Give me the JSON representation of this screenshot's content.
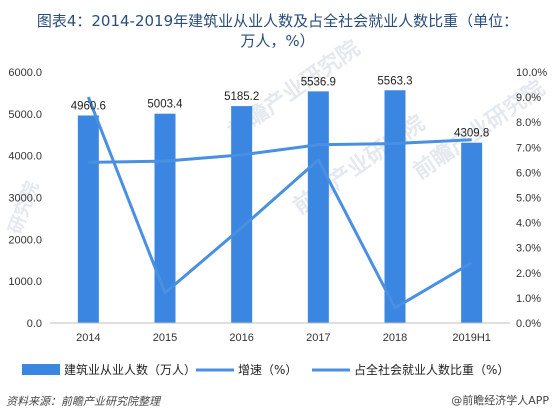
{
  "header": {
    "title_line1": "图表4：2014-2019年建筑业从业人数及占全社会就业人数比重（单位：",
    "title_line2": "万人，%）"
  },
  "footer": {
    "source": "资料来源：前瞻产业研究院整理",
    "brand": "@前瞻经济学人APP"
  },
  "watermarks": [
    "前瞻产业研究院",
    "前瞻产业研究院",
    "前瞻产业研究院",
    "研究院"
  ],
  "colors": {
    "bar": "#3b86e0",
    "line_growth": "#4a90e2",
    "line_share": "#4a90e2"
  },
  "chart_data": {
    "type": "bar",
    "categories": [
      "2014",
      "2015",
      "2016",
      "2017",
      "2018",
      "2019H1"
    ],
    "series": [
      {
        "name": "建筑业从业人数（万人）",
        "type": "bar",
        "axis": "left",
        "values": [
          4960.6,
          5003.4,
          5185.2,
          5536.9,
          5563.3,
          4309.8
        ]
      },
      {
        "name": "增速（%）",
        "type": "line",
        "axis": "right",
        "values": [
          9.0,
          1.2,
          3.8,
          6.5,
          0.6,
          2.4
        ]
      },
      {
        "name": "占全社会就业人数比重（%）",
        "type": "line",
        "axis": "right",
        "values": [
          6.4,
          6.45,
          6.7,
          7.1,
          7.15,
          7.3
        ]
      }
    ],
    "left_axis": {
      "ticks": [
        "0.0",
        "1000.0",
        "2000.0",
        "3000.0",
        "4000.0",
        "5000.0",
        "6000.0"
      ],
      "range": [
        0,
        6000
      ]
    },
    "right_axis": {
      "ticks": [
        "0.0%",
        "1.0%",
        "2.0%",
        "3.0%",
        "4.0%",
        "5.0%",
        "6.0%",
        "7.0%",
        "8.0%",
        "9.0%",
        "10.0%"
      ],
      "range": [
        0,
        10
      ]
    },
    "data_labels": [
      "4960.6",
      "5003.4",
      "5185.2",
      "5536.9",
      "5563.3",
      "4309.8"
    ],
    "legend_position": "bottom",
    "grid": false
  }
}
